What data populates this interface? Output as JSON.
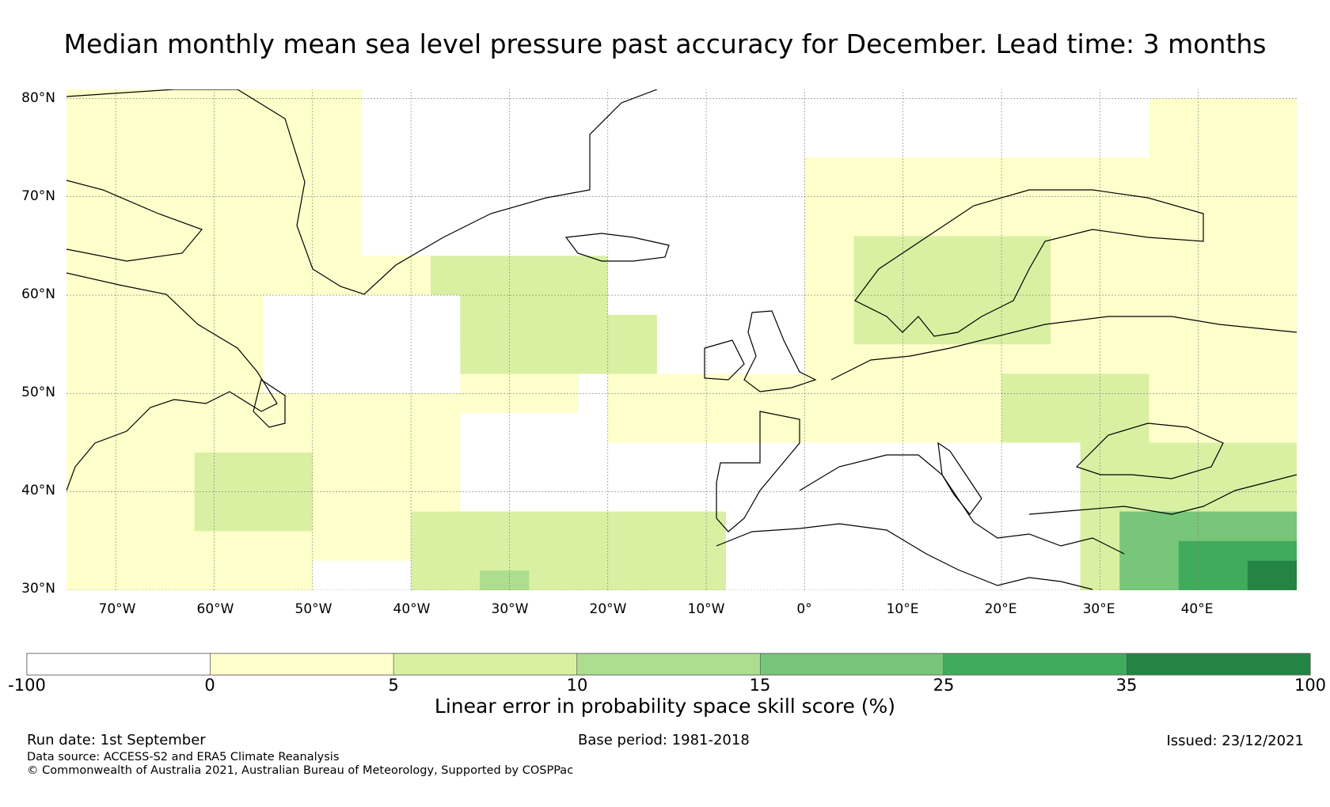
{
  "title": "Median monthly mean sea level pressure past accuracy for December. Lead time: 3 months",
  "chart_data": {
    "type": "heatmap",
    "projection": "equirectangular",
    "lon_range": [
      -75,
      50
    ],
    "lat_range": [
      30,
      81
    ],
    "lat_ticks": [
      "80°N",
      "70°N",
      "60°N",
      "50°N",
      "40°N",
      "30°N"
    ],
    "lon_ticks": [
      "70°W",
      "60°W",
      "50°W",
      "40°W",
      "30°W",
      "20°W",
      "10°W",
      "0°",
      "10°E",
      "20°E",
      "30°E",
      "40°E"
    ],
    "gridlines": true,
    "colorbar": {
      "label": "Linear error in probability space skill score (%)",
      "ticks": [
        "-100",
        "0",
        "5",
        "10",
        "15",
        "25",
        "35",
        "100"
      ],
      "bins": [
        {
          "from": -100,
          "to": 0,
          "color": "#ffffff"
        },
        {
          "from": 0,
          "to": 5,
          "color": "#ffffcc"
        },
        {
          "from": 5,
          "to": 10,
          "color": "#d9f0a3"
        },
        {
          "from": 10,
          "to": 15,
          "color": "#addd8e"
        },
        {
          "from": 15,
          "to": 25,
          "color": "#78c679"
        },
        {
          "from": 25,
          "to": 35,
          "color": "#41ab5d"
        },
        {
          "from": 35,
          "to": 100,
          "color": "#238443"
        }
      ]
    },
    "regions": [
      {
        "lon": [
          -75,
          -23
        ],
        "lat": [
          48,
          81
        ],
        "value": 2
      },
      {
        "lon": [
          -75,
          -50
        ],
        "lat": [
          30,
          48
        ],
        "value": 3
      },
      {
        "lon": [
          -62,
          -48
        ],
        "lat": [
          36,
          44
        ],
        "value": 7
      },
      {
        "lon": [
          -50,
          -35
        ],
        "lat": [
          33,
          48
        ],
        "value": 3
      },
      {
        "lon": [
          -38,
          -20
        ],
        "lat": [
          55,
          64
        ],
        "value": 7
      },
      {
        "lon": [
          -35,
          -15
        ],
        "lat": [
          52,
          58
        ],
        "value": 6
      },
      {
        "lon": [
          -40,
          -5
        ],
        "lat": [
          30,
          38
        ],
        "value": 7
      },
      {
        "lon": [
          -33,
          -28
        ],
        "lat": [
          30,
          32
        ],
        "value": 12
      },
      {
        "lon": [
          -10,
          -3
        ],
        "lat": [
          30,
          36
        ],
        "value": 8
      },
      {
        "lon": [
          -20,
          0
        ],
        "lat": [
          45,
          52
        ],
        "value": 3
      },
      {
        "lon": [
          0,
          35
        ],
        "lat": [
          45,
          74
        ],
        "value": 3
      },
      {
        "lon": [
          5,
          25
        ],
        "lat": [
          55,
          66
        ],
        "value": 7
      },
      {
        "lon": [
          20,
          40
        ],
        "lat": [
          42,
          52
        ],
        "value": 7
      },
      {
        "lon": [
          28,
          50
        ],
        "lat": [
          30,
          45
        ],
        "value": 9
      },
      {
        "lon": [
          32,
          50
        ],
        "lat": [
          30,
          38
        ],
        "value": 18
      },
      {
        "lon": [
          38,
          50
        ],
        "lat": [
          30,
          35
        ],
        "value": 28
      },
      {
        "lon": [
          45,
          50
        ],
        "lat": [
          30,
          33
        ],
        "value": 38
      },
      {
        "lon": [
          35,
          50
        ],
        "lat": [
          45,
          80
        ],
        "value": 3
      },
      {
        "lon": [
          -8,
          28
        ],
        "lat": [
          30,
          45
        ],
        "value": -5
      },
      {
        "lon": [
          -45,
          -20
        ],
        "lat": [
          64,
          81
        ],
        "value": -5
      },
      {
        "lon": [
          -20,
          0
        ],
        "lat": [
          58,
          81
        ],
        "value": -5
      },
      {
        "lon": [
          -55,
          -35
        ],
        "lat": [
          50,
          60
        ],
        "value": -3
      }
    ]
  },
  "footer": {
    "run_date": "Run date: 1st September",
    "base_period": "Base period: 1981-2018",
    "issued": "Issued: 23/12/2021",
    "data_source": "Data source: ACCESS-S2 and ERA5 Climate Reanalysis",
    "copyright": "© Commonwealth of Australia 2021, Australian Bureau of Meteorology, Supported by COSPPac"
  }
}
